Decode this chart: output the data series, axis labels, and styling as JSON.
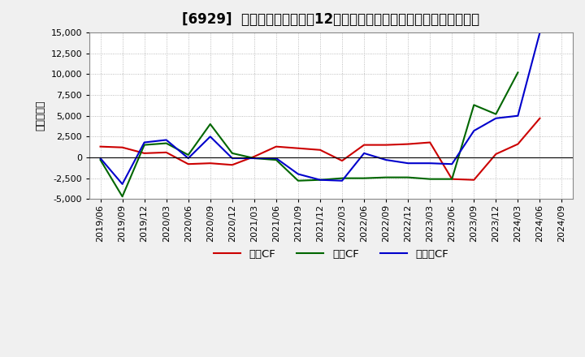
{
  "title": "[6929]  キャッシュフローの12か月移動合計の対前年同期増減額の推移",
  "ylabel": "（百万円）",
  "ylim": [
    -5000,
    15000
  ],
  "yticks": [
    -5000,
    -2500,
    0,
    2500,
    5000,
    7500,
    10000,
    12500,
    15000
  ],
  "background_color": "#f0f0f0",
  "plot_bg_color": "#ffffff",
  "grid_color": "#aaaaaa",
  "dates": [
    "2019/06",
    "2019/09",
    "2019/12",
    "2020/03",
    "2020/06",
    "2020/09",
    "2020/12",
    "2021/03",
    "2021/06",
    "2021/09",
    "2021/12",
    "2022/03",
    "2022/06",
    "2022/09",
    "2022/12",
    "2023/03",
    "2023/06",
    "2023/09",
    "2023/12",
    "2024/03",
    "2024/06",
    "2024/09"
  ],
  "sales_cf": [
    1300,
    1200,
    500,
    600,
    -800,
    -700,
    -900,
    100,
    1300,
    1100,
    900,
    -400,
    1500,
    1500,
    1600,
    1800,
    -2600,
    -2700,
    400,
    1600,
    4700,
    null
  ],
  "invest_cf": [
    -300,
    -4700,
    1500,
    1700,
    300,
    4000,
    500,
    -100,
    -300,
    -2800,
    -2700,
    -2500,
    -2500,
    -2400,
    -2400,
    -2600,
    -2600,
    6300,
    5200,
    10200,
    null,
    null
  ],
  "free_cf": [
    -100,
    -3200,
    1800,
    2100,
    -100,
    2500,
    -100,
    -100,
    -100,
    -2000,
    -2700,
    -2800,
    500,
    -300,
    -700,
    -700,
    -800,
    3200,
    4700,
    5000,
    15000,
    null
  ],
  "line_colors": {
    "sales_cf": "#cc0000",
    "invest_cf": "#006600",
    "free_cf": "#0000cc"
  },
  "legend_labels": {
    "sales_cf": "営業CF",
    "invest_cf": "投資CF",
    "free_cf": "フリーCF"
  },
  "title_fontsize": 12,
  "label_fontsize": 9,
  "tick_fontsize": 8
}
